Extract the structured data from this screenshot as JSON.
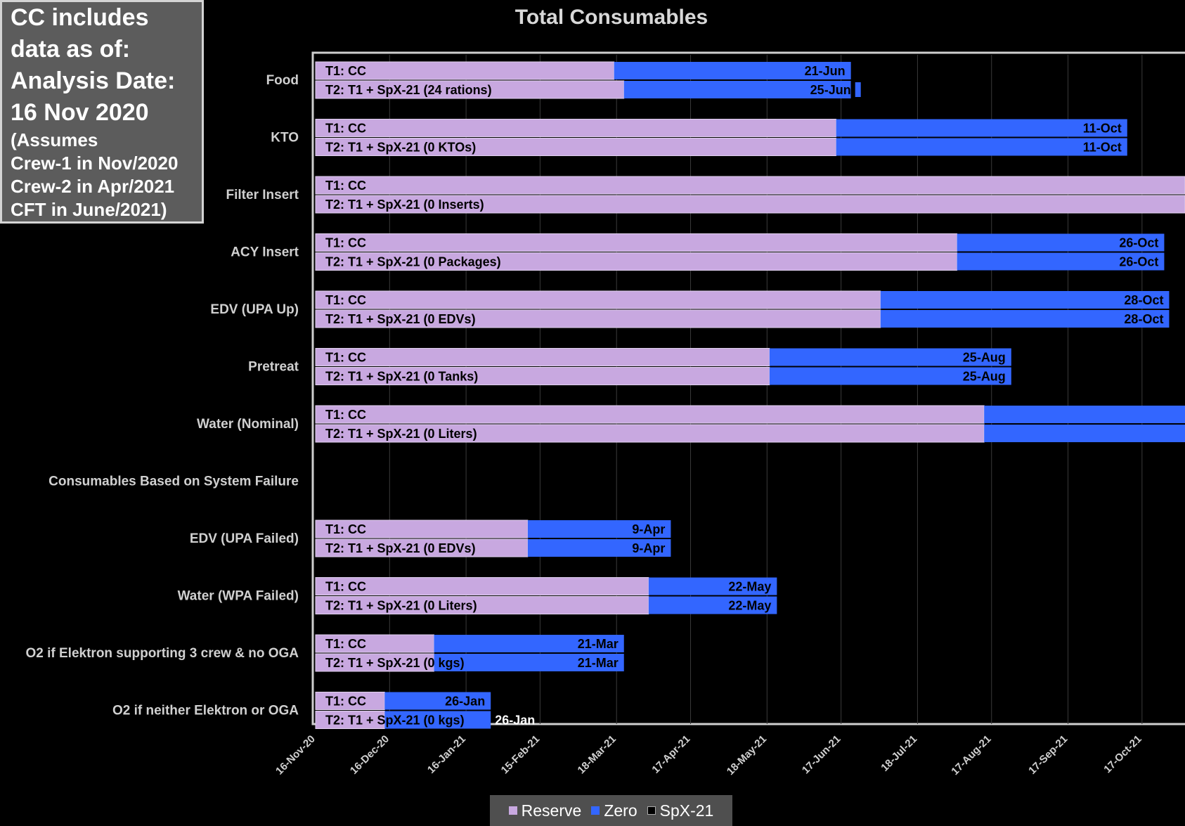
{
  "note_box": {
    "lines": [
      "CC includes",
      "data as of:",
      "Analysis Date:",
      "16 Nov 2020"
    ],
    "sublines": [
      "(Assumes",
      "Crew-1 in Nov/2020",
      "Crew-2 in Apr/2021",
      "CFT in June/2021)"
    ]
  },
  "chart_data": {
    "type": "bar",
    "orientation": "horizontal",
    "stacked": true,
    "title": "Total Consumables",
    "x_axis": {
      "type": "date",
      "min": "2020-11-16",
      "ticks": [
        "16-Nov-20",
        "16-Dec-20",
        "16-Jan-21",
        "15-Feb-21",
        "18-Mar-21",
        "17-Apr-21",
        "18-May-21",
        "17-Jun-21",
        "18-Jul-21",
        "17-Aug-21",
        "17-Sep-21",
        "17-Oct-21"
      ],
      "grid": true
    },
    "series_names": [
      "Reserve",
      "Zero",
      "SpX-21"
    ],
    "colors": {
      "Reserve": "#c8a8e0",
      "Zero": "#3366ff",
      "SpX-21": "#000000"
    },
    "legend_position": "bottom",
    "groups": [
      {
        "label": "Food",
        "bars": [
          {
            "label": "T1: CC",
            "reserve_end": "2021-03-17",
            "zero_end": "2021-06-21",
            "spx_end": "2021-06-21",
            "end_label": "21-Jun",
            "label_inside": true
          },
          {
            "label": "T2: T1 + SpX-21 (24 rations)",
            "reserve_end": "2021-03-21",
            "zero_end": "2021-06-21",
            "spx_end": "2021-06-25",
            "end_label": "25-Jun",
            "label_inside": true
          }
        ]
      },
      {
        "label": "KTO",
        "bars": [
          {
            "label": "T1: CC",
            "reserve_end": "2021-06-15",
            "zero_end": "2021-10-11",
            "spx_end": "2021-10-11",
            "end_label": "11-Oct",
            "label_inside": true
          },
          {
            "label": "T2: T1 + SpX-21 (0 KTOs)",
            "reserve_end": "2021-06-15",
            "zero_end": "2021-10-11",
            "spx_end": "2021-10-11",
            "end_label": "11-Oct",
            "label_inside": true
          }
        ]
      },
      {
        "label": "Filter Insert",
        "bars": [
          {
            "label": "T1: CC",
            "reserve_end": "2021-12-31",
            "zero_end": "2021-12-31",
            "spx_end": "2021-12-31",
            "end_label": "",
            "label_inside": true
          },
          {
            "label": "T2: T1 + SpX-21 (0 Inserts)",
            "reserve_end": "2021-12-31",
            "zero_end": "2021-12-31",
            "spx_end": "2021-12-31",
            "end_label": "",
            "label_inside": true
          }
        ]
      },
      {
        "label": "ACY Insert",
        "bars": [
          {
            "label": "T1: CC",
            "reserve_end": "2021-08-03",
            "zero_end": "2021-10-26",
            "spx_end": "2021-10-26",
            "end_label": "26-Oct",
            "label_inside": true
          },
          {
            "label": "T2: T1 + SpX-21 (0 Packages)",
            "reserve_end": "2021-08-03",
            "zero_end": "2021-10-26",
            "spx_end": "2021-10-26",
            "end_label": "26-Oct",
            "label_inside": true
          }
        ]
      },
      {
        "label": "EDV (UPA Up)",
        "bars": [
          {
            "label": "T1: CC",
            "reserve_end": "2021-07-03",
            "zero_end": "2021-10-28",
            "spx_end": "2021-10-28",
            "end_label": "28-Oct",
            "label_inside": true
          },
          {
            "label": "T2: T1 + SpX-21 (0 EDVs)",
            "reserve_end": "2021-07-03",
            "zero_end": "2021-10-28",
            "spx_end": "2021-10-28",
            "end_label": "28-Oct",
            "label_inside": true
          }
        ]
      },
      {
        "label": "Pretreat",
        "bars": [
          {
            "label": "T1: CC",
            "reserve_end": "2021-05-19",
            "zero_end": "2021-08-25",
            "spx_end": "2021-08-25",
            "end_label": "25-Aug",
            "label_inside": true
          },
          {
            "label": "T2: T1 + SpX-21 (0 Tanks)",
            "reserve_end": "2021-05-19",
            "zero_end": "2021-08-25",
            "spx_end": "2021-08-25",
            "end_label": "25-Aug",
            "label_inside": true
          }
        ]
      },
      {
        "label": "Water (Nominal)",
        "bars": [
          {
            "label": "T1: CC",
            "reserve_end": "2021-08-14",
            "zero_end": "2021-12-31",
            "spx_end": "2021-12-31",
            "end_label": "",
            "label_inside": true
          },
          {
            "label": "T2: T1 + SpX-21 (0 Liters)",
            "reserve_end": "2021-08-14",
            "zero_end": "2021-12-31",
            "spx_end": "2021-12-31",
            "end_label": "",
            "label_inside": true
          }
        ]
      },
      {
        "label": "Consumables Based on System Failure",
        "bars": []
      },
      {
        "label": "EDV (UPA Failed)",
        "bars": [
          {
            "label": "T1: CC",
            "reserve_end": "2021-02-10",
            "zero_end": "2021-04-09",
            "spx_end": "2021-04-09",
            "end_label": "9-Apr",
            "label_inside": true
          },
          {
            "label": "T2: T1 + SpX-21 (0 EDVs)",
            "reserve_end": "2021-02-10",
            "zero_end": "2021-04-09",
            "spx_end": "2021-04-09",
            "end_label": "9-Apr",
            "label_inside": true
          }
        ]
      },
      {
        "label": "Water (WPA Failed)",
        "bars": [
          {
            "label": "T1: CC",
            "reserve_end": "2021-03-31",
            "zero_end": "2021-05-22",
            "spx_end": "2021-05-22",
            "end_label": "22-May",
            "label_inside": true
          },
          {
            "label": "T2: T1 + SpX-21 (0 Liters)",
            "reserve_end": "2021-03-31",
            "zero_end": "2021-05-22",
            "spx_end": "2021-05-22",
            "end_label": "22-May",
            "label_inside": true
          }
        ]
      },
      {
        "label": "O2 if Elektron supporting 3 crew & no OGA",
        "bars": [
          {
            "label": "T1: CC",
            "reserve_end": "2021-01-03",
            "zero_end": "2021-03-21",
            "spx_end": "2021-03-21",
            "end_label": "21-Mar",
            "label_inside": true
          },
          {
            "label": "T2: T1 + SpX-21 (0 kgs)",
            "reserve_end": "2021-01-03",
            "zero_end": "2021-03-21",
            "spx_end": "2021-03-21",
            "end_label": "21-Mar",
            "label_inside": true
          }
        ]
      },
      {
        "label": "O2 if neither Elektron or OGA",
        "bars": [
          {
            "label": "T1: CC",
            "reserve_end": "2020-12-14",
            "zero_end": "2021-01-26",
            "spx_end": "2021-01-26",
            "end_label": "26-Jan",
            "label_inside": true
          },
          {
            "label": "T2: T1 + SpX-21 (0 kgs)",
            "reserve_end": "2020-12-14",
            "zero_end": "2021-01-26",
            "spx_end": "2021-01-26",
            "end_label": "26-Jan",
            "label_inside": false
          }
        ]
      }
    ]
  }
}
